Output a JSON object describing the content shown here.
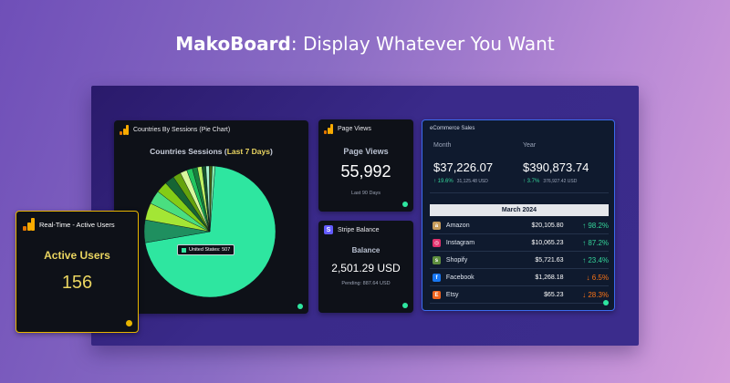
{
  "hero": {
    "brand": "MakoBoard",
    "rest": ": Display Whatever You Want"
  },
  "pie_card": {
    "title": "Countries By Sessions (Pie Chart)",
    "subtitle_prefix": "Countries Sessions (",
    "subtitle_highlight": "Last 7 Days",
    "subtitle_suffix": ")",
    "tooltip": "United States: 507",
    "colors": {
      "main": "#2ee6a0",
      "palette": [
        "#1f8f5f",
        "#a3e635",
        "#4ade80",
        "#84cc16",
        "#166534",
        "#65a30d",
        "#d9f99d",
        "#22c55e",
        "#15803d",
        "#bef264",
        "#14532d",
        "#a7f3d0",
        "#3f6212",
        "#86efac"
      ]
    }
  },
  "chart_data": {
    "type": "pie",
    "title": "Countries Sessions (Last 7 Days)",
    "slices": [
      {
        "label": "United States",
        "value": 507
      },
      {
        "label": "",
        "value": 40
      },
      {
        "label": "",
        "value": 30
      },
      {
        "label": "",
        "value": 24
      },
      {
        "label": "",
        "value": 20
      },
      {
        "label": "",
        "value": 17
      },
      {
        "label": "",
        "value": 14
      },
      {
        "label": "",
        "value": 12
      },
      {
        "label": "",
        "value": 10
      },
      {
        "label": "",
        "value": 9
      },
      {
        "label": "",
        "value": 8
      },
      {
        "label": "",
        "value": 7
      },
      {
        "label": "",
        "value": 6
      },
      {
        "label": "",
        "value": 5
      },
      {
        "label": "",
        "value": 5
      }
    ]
  },
  "views_card": {
    "title": "Page Views",
    "label": "Page Views",
    "value": "55,992",
    "note": "Last 90 Days"
  },
  "stripe_card": {
    "title": "Stripe Balance",
    "icon_letter": "S",
    "label": "Balance",
    "value": "2,501.29 USD",
    "note": "Pending: 887.64 USD"
  },
  "ecom_card": {
    "title": "eCommerce Sales",
    "month": {
      "label": "Month",
      "value": "$37,226.07",
      "change": "↑ 19.6%",
      "sub": "31,125.48 USD"
    },
    "year": {
      "label": "Year",
      "value": "$390,873.74",
      "change": "↑ 3.7%",
      "sub": "376,927.42 USD"
    },
    "period": "March 2024",
    "rows": [
      {
        "name": "Amazon",
        "amount": "$20,105.80",
        "change": "↑ 98.2%",
        "dir": "up",
        "icon": "a",
        "color": "#c69b5a"
      },
      {
        "name": "Instagram",
        "amount": "$10,065.23",
        "change": "↑ 87.2%",
        "dir": "up",
        "icon": "◎",
        "color": "#e1306c"
      },
      {
        "name": "Shopify",
        "amount": "$5,721.63",
        "change": "↑ 23.4%",
        "dir": "up",
        "icon": "s",
        "color": "#5e8e3e"
      },
      {
        "name": "Facebook",
        "amount": "$1,268.18",
        "change": "↓ 6.5%",
        "dir": "down",
        "icon": "f",
        "color": "#1877f2"
      },
      {
        "name": "Etsy",
        "amount": "$65.23",
        "change": "↓ 28.3%",
        "dir": "down",
        "icon": "E",
        "color": "#f1641e"
      }
    ]
  },
  "realtime_card": {
    "title": "Real-Time - Active Users",
    "label": "Active Users",
    "value": "156"
  }
}
